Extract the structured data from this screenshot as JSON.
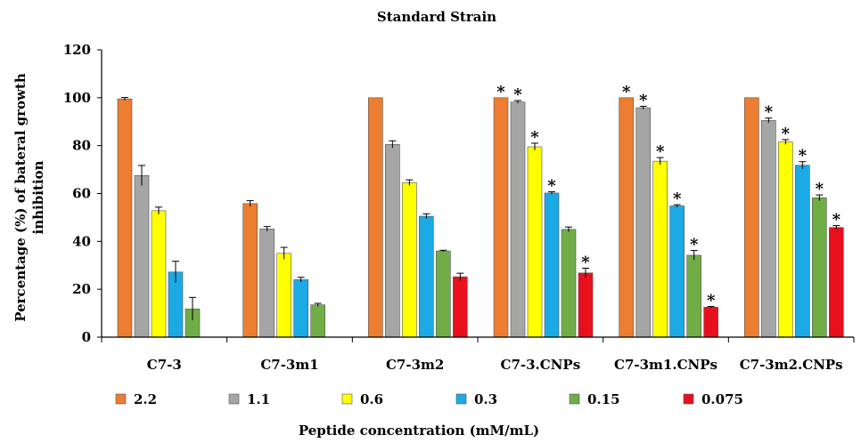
{
  "chart_data": {
    "type": "bar",
    "title": "Standard  Strain",
    "ylabel_lines": [
      "Percentage (%) of bateral growth",
      "inhibition"
    ],
    "xlabel": "Peptide concentration  (mM/mL)",
    "ylim": [
      0,
      120
    ],
    "yticks": [
      "0",
      "20",
      "40",
      "60",
      "80",
      "100",
      "120"
    ],
    "categories": [
      "C7-3",
      "C7-3m1",
      "C7-3m2",
      "C7-3.CNPs",
      "C7-3m1.CNPs",
      "C7-3m2.CNPs"
    ],
    "legend_position": "bottom",
    "series": [
      {
        "name": "2.2",
        "color": "#ED7D31",
        "values": [
          99.5,
          55.8,
          100,
          100,
          100,
          100
        ],
        "errors": [
          0.6,
          1.2,
          0,
          0,
          0,
          0
        ],
        "significant": [
          false,
          false,
          false,
          true,
          true,
          false
        ]
      },
      {
        "name": "1.1",
        "color": "#A5A5A5",
        "values": [
          67.5,
          45.2,
          80.5,
          98.2,
          95.8,
          90.5
        ],
        "errors": [
          4.2,
          1.0,
          1.5,
          0.6,
          0.6,
          1.0
        ],
        "significant": [
          false,
          false,
          false,
          true,
          true,
          true
        ]
      },
      {
        "name": "0.6",
        "color": "#FFFF00",
        "values": [
          52.8,
          35.0,
          64.5,
          79.5,
          73.5,
          81.5
        ],
        "errors": [
          1.5,
          2.5,
          1.2,
          1.5,
          1.5,
          1.0
        ],
        "significant": [
          false,
          false,
          false,
          true,
          true,
          true
        ]
      },
      {
        "name": "0.3",
        "color": "#1CAAE6",
        "values": [
          27.2,
          24.0,
          50.5,
          60.2,
          54.8,
          71.8
        ],
        "errors": [
          4.5,
          1.0,
          1.0,
          0.5,
          0.5,
          1.5
        ],
        "significant": [
          false,
          false,
          false,
          true,
          true,
          true
        ]
      },
      {
        "name": "0.15",
        "color": "#70AD47",
        "values": [
          11.8,
          13.5,
          36.0,
          45.0,
          34.2,
          58.2
        ],
        "errors": [
          4.8,
          0.6,
          0.3,
          1.0,
          2.0,
          1.2
        ],
        "significant": [
          false,
          false,
          false,
          false,
          true,
          true
        ]
      },
      {
        "name": "0.075",
        "color": "#E8101C",
        "values": [
          0,
          0,
          25.2,
          26.8,
          12.5,
          45.8
        ],
        "errors": [
          0,
          0,
          1.5,
          2.0,
          0.3,
          0.8
        ],
        "significant": [
          false,
          false,
          false,
          true,
          true,
          true
        ]
      }
    ],
    "significance_marker": "*"
  }
}
